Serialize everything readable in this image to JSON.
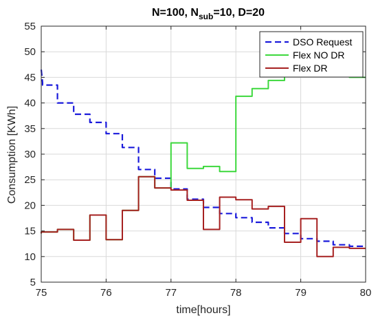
{
  "chart_data": {
    "type": "line",
    "title": {
      "prefix": "N=100, N",
      "subscript": "sub",
      "suffix": "=10, D=20"
    },
    "xlabel": "time[hours]",
    "ylabel": "Consumption [KWh]",
    "xlim": [
      75,
      80
    ],
    "ylim": [
      5,
      55
    ],
    "xticks": [
      "75",
      "76",
      "77",
      "78",
      "79",
      "80"
    ],
    "yticks": [
      "5",
      "10",
      "15",
      "20",
      "25",
      "30",
      "35",
      "40",
      "45",
      "50",
      "55"
    ],
    "grid": true,
    "legend_position": "top-right",
    "series": [
      {
        "name": "DSO Request",
        "color": "#1a1adb",
        "style": "dashed",
        "x": [
          75.0,
          75.02,
          75.02,
          75.25,
          75.25,
          75.5,
          75.5,
          75.75,
          75.75,
          76.0,
          76.0,
          76.25,
          76.25,
          76.5,
          76.5,
          76.75,
          76.75,
          77.0,
          77.0,
          77.25,
          77.25,
          77.5,
          77.5,
          77.75,
          77.75,
          78.0,
          78.0,
          78.25,
          78.25,
          78.5,
          78.5,
          78.75,
          78.75,
          79.0,
          79.0,
          79.25,
          79.25,
          79.5,
          79.5,
          79.75,
          79.75,
          80.0
        ],
        "y": [
          46.5,
          44.0,
          43.5,
          43.5,
          40.0,
          40.0,
          37.8,
          37.8,
          36.2,
          36.2,
          34.0,
          34.0,
          31.3,
          31.3,
          27.0,
          27.0,
          25.3,
          25.3,
          23.2,
          23.2,
          21.2,
          21.2,
          19.6,
          19.6,
          18.4,
          18.4,
          17.6,
          17.6,
          16.7,
          16.7,
          15.6,
          15.6,
          14.5,
          14.5,
          13.5,
          13.5,
          13.0,
          13.0,
          12.3,
          12.3,
          12.0,
          12.0
        ]
      },
      {
        "name": "Flex NO DR",
        "color": "#3cd83c",
        "style": "solid",
        "x": [
          75.0,
          75.0,
          75.25,
          75.25,
          75.5,
          75.5,
          75.75,
          75.75,
          76.0,
          76.0,
          76.25,
          76.25,
          76.5,
          76.5,
          76.75,
          76.75,
          77.0,
          77.0,
          77.25,
          77.25,
          77.5,
          77.5,
          77.75,
          77.75,
          78.0,
          78.0,
          78.25,
          78.25,
          78.5,
          78.5,
          78.75,
          78.75,
          79.0,
          79.0,
          79.25,
          79.25,
          79.5,
          79.5,
          79.75,
          79.75,
          80.0
        ],
        "y": [
          14.5,
          14.8,
          14.8,
          15.3,
          15.3,
          13.2,
          13.2,
          18.1,
          18.1,
          13.3,
          13.3,
          19.0,
          19.0,
          25.6,
          25.6,
          23.4,
          23.4,
          32.2,
          32.2,
          27.2,
          27.2,
          27.6,
          27.6,
          26.6,
          26.6,
          41.3,
          41.3,
          42.8,
          42.8,
          44.4,
          44.4,
          45.5,
          45.5,
          46.0,
          46.0,
          45.8,
          45.8,
          45.2,
          45.2,
          45.0,
          45.0
        ]
      },
      {
        "name": "Flex DR",
        "color": "#a62020",
        "style": "solid",
        "x": [
          75.0,
          75.0,
          75.25,
          75.25,
          75.5,
          75.5,
          75.75,
          75.75,
          76.0,
          76.0,
          76.25,
          76.25,
          76.5,
          76.5,
          76.75,
          76.75,
          77.0,
          77.0,
          77.25,
          77.25,
          77.5,
          77.5,
          77.75,
          77.75,
          78.0,
          78.0,
          78.25,
          78.25,
          78.5,
          78.5,
          78.75,
          78.75,
          79.0,
          79.0,
          79.25,
          79.25,
          79.5,
          79.5,
          79.75,
          79.75,
          80.0
        ],
        "y": [
          14.5,
          14.8,
          14.8,
          15.3,
          15.3,
          13.2,
          13.2,
          18.1,
          18.1,
          13.3,
          13.3,
          19.0,
          19.0,
          25.6,
          25.6,
          23.4,
          23.4,
          23.0,
          23.0,
          21.0,
          21.0,
          15.3,
          15.3,
          21.6,
          21.6,
          21.1,
          21.1,
          19.3,
          19.3,
          19.8,
          19.8,
          12.8,
          12.8,
          17.4,
          17.4,
          10.0,
          10.0,
          11.8,
          11.8,
          11.6,
          11.6
        ]
      }
    ]
  }
}
